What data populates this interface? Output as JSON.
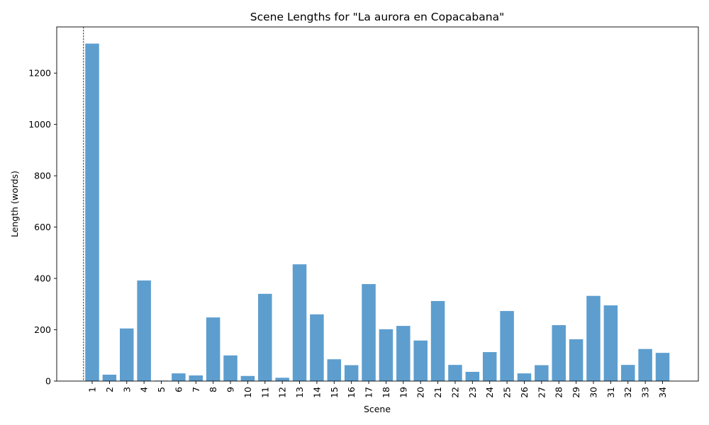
{
  "chart_data": {
    "type": "bar",
    "title": "Scene Lengths for \"La aurora en Copacabana\"",
    "xlabel": "Scene",
    "ylabel": "Length (words)",
    "categories": [
      "1",
      "2",
      "3",
      "4",
      "5",
      "6",
      "7",
      "8",
      "9",
      "10",
      "11",
      "12",
      "13",
      "14",
      "15",
      "16",
      "17",
      "18",
      "19",
      "20",
      "21",
      "22",
      "23",
      "24",
      "25",
      "26",
      "27",
      "28",
      "29",
      "30",
      "31",
      "32",
      "33",
      "34"
    ],
    "values": [
      1315,
      25,
      205,
      392,
      2,
      30,
      22,
      248,
      100,
      20,
      340,
      13,
      455,
      260,
      85,
      62,
      378,
      202,
      215,
      158,
      312,
      63,
      36,
      113,
      273,
      30,
      62,
      218,
      163,
      332,
      295,
      63,
      125,
      110
    ],
    "ylim": [
      0,
      1380
    ],
    "yticks": [
      0,
      200,
      400,
      600,
      800,
      1000,
      1200
    ],
    "bar_color": "#5d9ecf",
    "annotations": [
      "vertical dashed line before scene 1"
    ]
  }
}
